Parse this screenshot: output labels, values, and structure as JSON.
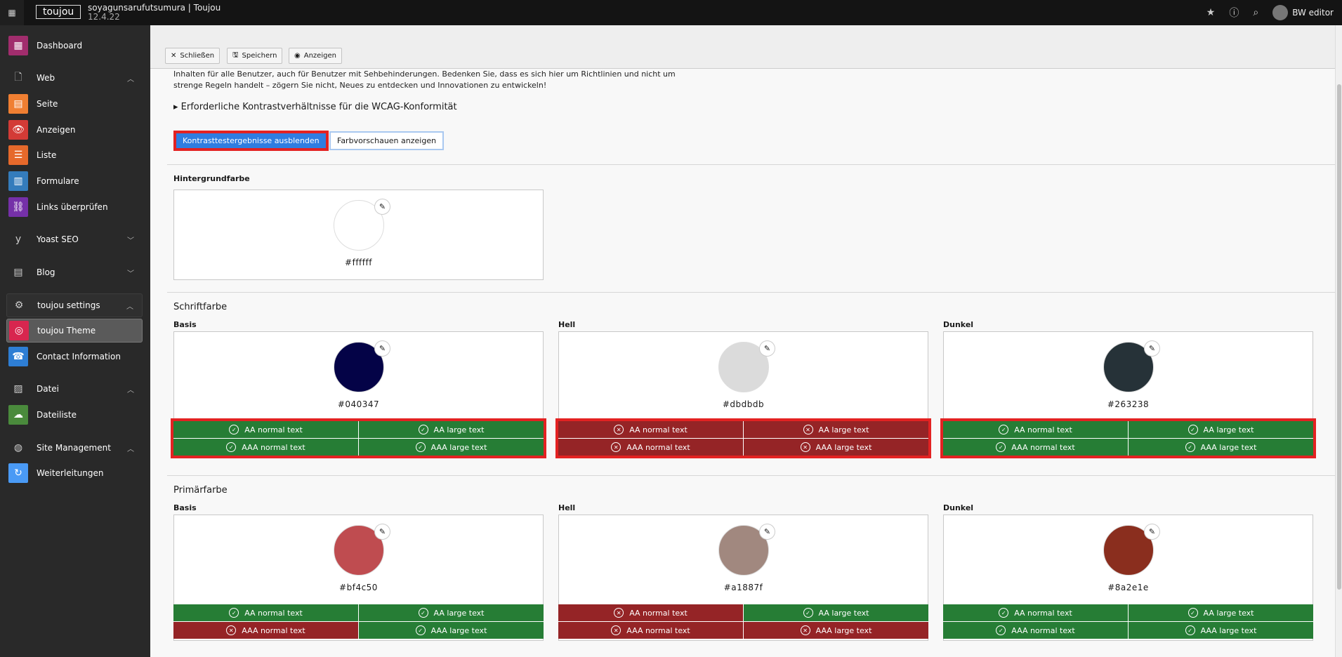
{
  "topbar": {
    "logo": "toujou",
    "site": "soyagunsarufutsumura | Toujou",
    "version": "12.4.22",
    "user": "BW editor",
    "icons": [
      "apps-grid-icon",
      "star-icon",
      "help-icon",
      "search-icon",
      "avatar-icon"
    ]
  },
  "sidebar": [
    {
      "label": "Dashboard",
      "icon": "▦",
      "color": "#a12d6d",
      "type": "module"
    },
    {
      "label": "Web",
      "icon": "🗋",
      "type": "group",
      "chev": "^"
    },
    {
      "label": "Seite",
      "icon": "▤",
      "color": "#f07f32",
      "type": "module"
    },
    {
      "label": "Anzeigen",
      "icon": "👁",
      "color": "#d33b36",
      "type": "module"
    },
    {
      "label": "Liste",
      "icon": "☰",
      "color": "#e6692b",
      "type": "module"
    },
    {
      "label": "Formulare",
      "icon": "▥",
      "color": "#347cbc",
      "type": "module"
    },
    {
      "label": "Links überprüfen",
      "icon": "⛓",
      "color": "#7530a8",
      "type": "module"
    },
    {
      "label": "Yoast SEO",
      "icon": "y",
      "type": "group",
      "chev": "v"
    },
    {
      "label": "Blog",
      "icon": "▤",
      "type": "group",
      "chev": "v"
    },
    {
      "label": "toujou settings",
      "icon": "⚙",
      "type": "group",
      "chev": "^",
      "open": true
    },
    {
      "label": "toujou Theme",
      "icon": "◎",
      "color": "#d8264f",
      "type": "module",
      "active": true
    },
    {
      "label": "Contact Information",
      "icon": "☎",
      "color": "#2e7ed4",
      "type": "module"
    },
    {
      "label": "Datei",
      "icon": "▨",
      "type": "group",
      "chev": "^"
    },
    {
      "label": "Dateiliste",
      "icon": "☁",
      "color": "#4a8a3c",
      "type": "module"
    },
    {
      "label": "Site Management",
      "icon": "◍",
      "type": "group",
      "chev": "^"
    },
    {
      "label": "Weiterleitungen",
      "icon": "↻",
      "color": "#4a9af5",
      "type": "module"
    }
  ],
  "toolbar": {
    "close": "Schließen",
    "save": "Speichern",
    "view": "Anzeigen"
  },
  "intro": {
    "line1": "Inhalten für alle Benutzer, auch für Benutzer mit Sehbehinderungen. Bedenken Sie, dass es sich hier um Richtlinien und nicht um",
    "line2": "strenge Regeln handelt – zögern Sie nicht, Neues zu entdecken und Innovationen zu entwickeln!"
  },
  "summary": "Erforderliche Kontrastverhältnisse für die WCAG-Konformität",
  "buttons": {
    "hide": "Kontrasttestergebnisse ausblenden",
    "preview": "Farbvorschauen anzeigen"
  },
  "colors": {
    "pass": "#267d35",
    "fail": "#952426",
    "highlight": "#e32222"
  },
  "background": {
    "label": "Hintergrundfarbe",
    "hex": "#ffffff"
  },
  "sections": [
    {
      "title": "Schriftfarbe",
      "swatches": [
        {
          "label": "Basis",
          "hex": "#040347",
          "highlight": true,
          "results": [
            {
              "label": "AA normal text",
              "pass": true
            },
            {
              "label": "AA large text",
              "pass": true
            },
            {
              "label": "AAA normal text",
              "pass": true
            },
            {
              "label": "AAA large text",
              "pass": true
            }
          ]
        },
        {
          "label": "Hell",
          "hex": "#dbdbdb",
          "highlight": true,
          "results": [
            {
              "label": "AA normal text",
              "pass": false
            },
            {
              "label": "AA large text",
              "pass": false
            },
            {
              "label": "AAA normal text",
              "pass": false
            },
            {
              "label": "AAA large text",
              "pass": false
            }
          ]
        },
        {
          "label": "Dunkel",
          "hex": "#263238",
          "highlight": true,
          "results": [
            {
              "label": "AA normal text",
              "pass": true
            },
            {
              "label": "AA large text",
              "pass": true
            },
            {
              "label": "AAA normal text",
              "pass": true
            },
            {
              "label": "AAA large text",
              "pass": true
            }
          ]
        }
      ]
    },
    {
      "title": "Primärfarbe",
      "swatches": [
        {
          "label": "Basis",
          "hex": "#bf4c50",
          "highlight": false,
          "results": [
            {
              "label": "AA normal text",
              "pass": true
            },
            {
              "label": "AA large text",
              "pass": true
            },
            {
              "label": "AAA normal text",
              "pass": false
            },
            {
              "label": "AAA large text",
              "pass": true
            }
          ]
        },
        {
          "label": "Hell",
          "hex": "#a1887f",
          "highlight": false,
          "results": [
            {
              "label": "AA normal text",
              "pass": false
            },
            {
              "label": "AA large text",
              "pass": true
            },
            {
              "label": "AAA normal text",
              "pass": false
            },
            {
              "label": "AAA large text",
              "pass": false
            }
          ]
        },
        {
          "label": "Dunkel",
          "hex": "#8a2e1e",
          "highlight": false,
          "results": [
            {
              "label": "AA normal text",
              "pass": true
            },
            {
              "label": "AA large text",
              "pass": true
            },
            {
              "label": "AAA normal text",
              "pass": true
            },
            {
              "label": "AAA large text",
              "pass": true
            }
          ]
        }
      ]
    }
  ]
}
